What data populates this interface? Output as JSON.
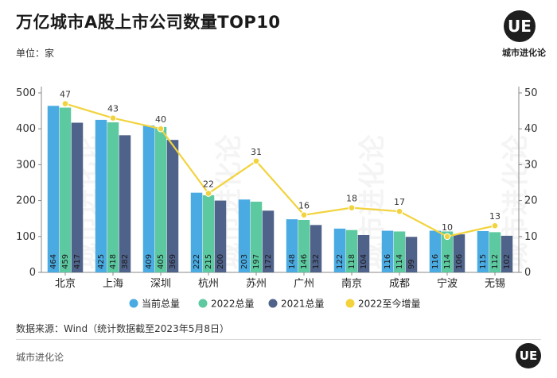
{
  "page": {
    "title": "万亿城市A股上市公司数量TOP10",
    "unit": "单位：家",
    "source": "数据来源：Wind（统计数据截至2023年5月8日）",
    "footer_brand": "城市进化论",
    "logo_text": "UE",
    "logo_caption": "城市进化论"
  },
  "colors": {
    "total_current": "#4aabe3",
    "total_2022": "#5cc9a0",
    "total_2021": "#4f6289",
    "increase_2022": "#f2d33e"
  },
  "chart_data": {
    "type": "bar+line",
    "title": "万亿城市A股上市公司数量TOP10",
    "categories": [
      "北京",
      "上海",
      "深圳",
      "杭州",
      "苏州",
      "广州",
      "南京",
      "成都",
      "宁波",
      "无锡"
    ],
    "series": [
      {
        "name": "当前总量",
        "type": "bar",
        "axis": "left",
        "color": "#4aabe3",
        "values": [
          464,
          425,
          409,
          222,
          203,
          148,
          122,
          116,
          116,
          115
        ]
      },
      {
        "name": "2022总量",
        "type": "bar",
        "axis": "left",
        "color": "#5cc9a0",
        "values": [
          459,
          418,
          405,
          215,
          197,
          146,
          118,
          114,
          114,
          112
        ]
      },
      {
        "name": "2021总量",
        "type": "bar",
        "axis": "left",
        "color": "#4f6289",
        "values": [
          417,
          382,
          369,
          200,
          172,
          132,
          104,
          99,
          106,
          102
        ]
      },
      {
        "name": "2022至今增量",
        "type": "line",
        "axis": "right",
        "color": "#f2d33e",
        "values": [
          47,
          43,
          40,
          22,
          31,
          16,
          18,
          17,
          10,
          13
        ]
      }
    ],
    "y_left": {
      "range": [
        0,
        500
      ],
      "ticks": [
        0,
        100,
        200,
        300,
        400,
        500
      ]
    },
    "y_right": {
      "range": [
        0,
        50
      ],
      "ticks": [
        0,
        10,
        20,
        30,
        40,
        50
      ]
    },
    "legend": {
      "position": "bottom",
      "entries": [
        "当前总量",
        "2022总量",
        "2021总量",
        "2022至今增量"
      ]
    },
    "grid": false
  },
  "watermark": {
    "text": "城市进化论"
  }
}
